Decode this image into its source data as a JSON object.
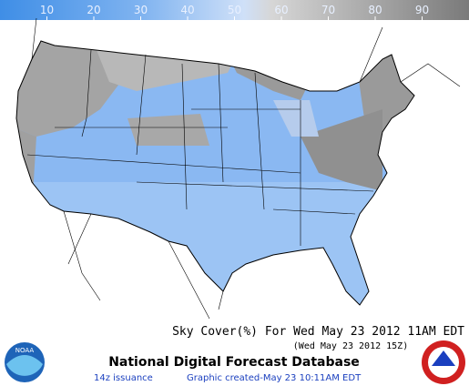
{
  "legend": {
    "range": [
      0,
      100
    ],
    "ticks": [
      10,
      20,
      30,
      40,
      50,
      60,
      70,
      80,
      90
    ]
  },
  "title": "Sky Cover(%) For Wed May 23 2012 11AM EDT",
  "subtitle": "(Wed May 23 2012 15Z)",
  "agency": "National Digital Forecast Database",
  "issuance": "14z issuance",
  "created": "Graphic created-May 23 10:11AM EDT",
  "noaa_logo": "NOAA"
}
